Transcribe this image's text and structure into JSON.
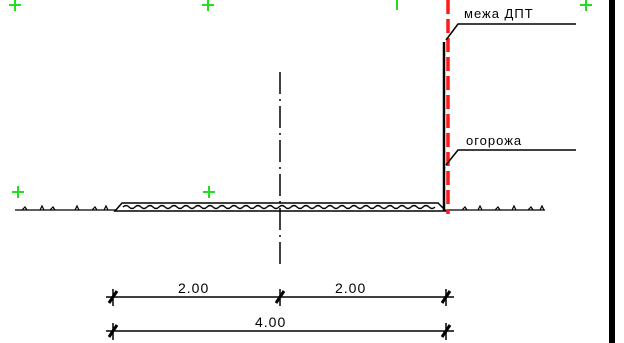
{
  "labels": {
    "boundary": "межа ДПТ",
    "fence": "огорожа"
  },
  "dimensions": {
    "left_half": "2.00",
    "right_half": "2.00",
    "total": "4.00"
  },
  "colors": {
    "line": "#000000",
    "boundary_line": "#ff1a1a",
    "marker": "#22dd22"
  },
  "icons": {
    "marker": "green-plus-icon"
  }
}
